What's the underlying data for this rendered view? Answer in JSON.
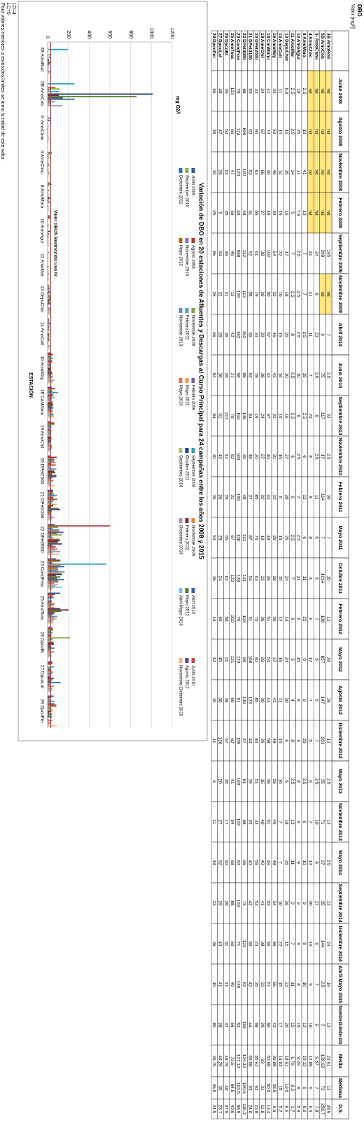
{
  "table": {
    "title": "DBO",
    "subtitle": "Valor [mg/l]",
    "header": [
      "Junio 2008",
      "Agosto 2008",
      "Noviembre 2008",
      "Febrero 2009",
      "Septiembre 2009",
      "Noviembre 2009",
      "Abril 2010",
      "Junio 2010",
      "Septiembre 2010",
      "Noviembre 2010",
      "Febrero 2011",
      "Mayo 2011",
      "Octubre 2011",
      "Febrero 2012",
      "Mayo 2012",
      "Agosto 2012",
      "Diciembre 2012",
      "Mayo 2013",
      "Noviembre 2013",
      "Mayo 2014",
      "Septiembre 2014",
      "Diciembre 2014",
      "Abril-Mayo 2015",
      "Noviembre-Diciembre 2015",
      "Media",
      "Mediana",
      "D.S."
    ],
    "rows": [
      [
        "3B AmoRod",
        "nd",
        "nd",
        "nd",
        "nd",
        195,
        "nd",
        7,
        2.5,
        33,
        2.5,
        30,
        7,
        15,
        12,
        28,
        18,
        12,
        2.5,
        13,
        2.5,
        13,
        24,
        19,
        13,
        23.61,
        13,
        38.9
      ],
      [
        "5B AmoCob",
        "nd",
        "nd",
        "nd",
        "nd",
        260,
        "nd",
        6,
        75,
        117,
        17,
        114,
        7,
        1014,
        108,
        857,
        147,
        261,
        35,
        71,
        27,
        35,
        144,
        2.5,
        7,
        139.62,
        73,
        258.7
      ],
      [
        "3- AmoCanu",
        "nd",
        "nd",
        "nd",
        "nd",
        34,
        8,
        23,
        2.5,
        6,
        2.5,
        11,
        5,
        6,
        7,
        5,
        5,
        7,
        2.5,
        10,
        6,
        17,
        9,
        7,
        9,
        9.57,
        7,
        7.8
      ],
      [
        "4 AmoChac",
        "nd",
        "nd",
        "nd",
        "nd",
        41,
        41,
        11,
        7,
        23,
        8,
        8,
        8,
        6,
        9,
        12,
        7,
        5,
        9,
        7,
        13,
        20,
        10,
        9,
        10,
        12.89,
        9,
        9.6
      ],
      [
        "8 AmoMara",
        2.5,
        19,
        41,
        13,
        7,
        7,
        2.5,
        15,
        2.5,
        6,
        12,
        6,
        11,
        22,
        9,
        9,
        20,
        2.5,
        6,
        10,
        9,
        9,
        10,
        12,
        10.13,
        9,
        8.6
      ],
      [
        "10 AmoAgui",
        19,
        25,
        17,
        7.9,
        2.5,
        2.5,
        2.5,
        10,
        8,
        2.5,
        7,
        2.5,
        21,
        6,
        15,
        8,
        9,
        8,
        6,
        9,
        9,
        9,
        8,
        15,
        9.29,
        8,
        5.9
      ],
      [
        "11 AmoMar",
        2.5,
        2.5,
        14,
        5,
        7,
        2.5,
        8,
        2.5,
        2.5,
        6,
        6,
        2.5,
        7,
        9,
        5,
        4,
        8,
        2.5,
        13,
        11,
        9,
        7,
        11,
        15,
        6.79,
        6.5,
        3.7
      ],
      [
        "13 DepuChor",
        6.8,
        16,
        15,
        19,
        17,
        18,
        26,
        10,
        19,
        27,
        28,
        25,
        24,
        14,
        24,
        20,
        6,
        6,
        18,
        26,
        26,
        15,
        23,
        20,
        18.91,
        19.5,
        6.6
      ],
      [
        "14 AmoCoit",
        11,
        15,
        14,
        16,
        32,
        10,
        15,
        16,
        15,
        16,
        6,
        16,
        15,
        12,
        16,
        12,
        15,
        16,
        7,
        7,
        10,
        22,
        15,
        17,
        14.63,
        15,
        5.2
      ],
      [
        "16 AmoMay",
        33,
        52,
        40,
        34,
        54,
        33,
        45,
        42,
        32,
        30,
        33,
        29,
        28,
        30,
        37,
        41,
        48,
        26,
        49,
        48,
        34,
        66,
        55,
        43,
        39.88,
        38.5,
        9.6
      ],
      [
        "18 CanManu",
        41,
        73,
        40,
        49,
        102,
        50,
        57,
        43,
        67,
        40,
        43,
        48,
        49,
        51,
        54,
        43,
        58,
        39,
        51,
        49,
        53,
        59,
        57,
        60,
        53.96,
        50.5,
        13.4
      ],
      [
        "19 AmoChil",
        24,
        67,
        66,
        27,
        38,
        29,
        20,
        38,
        24,
        27,
        32,
        18,
        32,
        39,
        29,
        30,
        26,
        15,
        40,
        40,
        41,
        38,
        33,
        20,
        33,
        31,
        11.8
      ],
      [
        "20 DPet2500",
        33,
        90,
        63,
        66,
        61,
        79,
        34,
        78,
        19,
        20,
        85,
        76,
        63,
        75,
        40,
        85,
        84,
        51,
        33,
        56,
        53,
        24,
        35,
        68,
        55.92,
        62,
        22.8
      ],
      [
        "21 DPet3100",
        53,
        53,
        53,
        61,
        92,
        58,
        56,
        93,
        64,
        48,
        37,
        87,
        54,
        31,
        106,
        123,
        40,
        39,
        33,
        43,
        42,
        66,
        42,
        44,
        59.08,
        53,
        24.6
      ],
      [
        "22 DPet3900",
        68,
        600,
        102,
        48,
        112,
        113,
        152,
        88,
        138,
        39,
        48,
        111,
        121,
        103,
        98,
        139,
        47,
        81,
        68,
        96,
        73,
        123,
        52,
        118,
        124.12,
        100.5,
        110.3
      ],
      [
        "23 CondFras",
        79,
        124,
        120,
        46,
        568,
        126,
        162,
        98,
        104,
        103,
        165,
        130,
        139,
        79,
        123,
        91,
        159,
        103,
        103,
        63,
        103,
        71,
        139,
        53,
        127.13,
        103.5,
        98.9
      ],
      [
        "25 AmoTosc",
        123,
        69,
        47,
        59,
        46,
        12,
        42,
        37,
        70,
        62,
        31,
        67,
        122,
        202,
        131,
        69,
        62,
        41,
        94,
        68,
        88,
        59,
        49,
        56,
        73.5,
        64.5,
        40.9
      ],
      [
        "26 DpcoBi",
        39,
        54,
        53,
        35,
        49,
        31,
        39,
        26,
        217,
        47,
        29,
        55,
        63,
        58,
        21,
        36,
        67,
        35,
        17,
        60,
        26,
        31,
        41,
        32,
        48.79,
        40,
        37.9
      ],
      [
        "27 DpcoLaf",
        48,
        47,
        26,
        5,
        64,
        32,
        26,
        38,
        51,
        43,
        26,
        28,
        24,
        60,
        45,
        30,
        126,
        20,
        27,
        62,
        29,
        43,
        41,
        28,
        40.29,
        35,
        23.7
      ],
      [
        "29 DpcoPer",
        59,
        28,
        19,
        25,
        65,
        26,
        66,
        84,
        84,
        30,
        39,
        53,
        36,
        14,
        42,
        15,
        41,
        6,
        11,
        48,
        23,
        36,
        15,
        89,
        39.75,
        36.5,
        24.9
      ]
    ]
  },
  "chart_data": {
    "type": "bar",
    "title": "Variación de DBO en 20 estaciones de Afluentes y Descargas al Curso Principal para 24 campañas entre los años 2008 y 2015",
    "ylabel": "mg O2/l",
    "xlabel": "ESTACIÓN",
    "legend": "top",
    "grid": true,
    "ylim": [
      0,
      1200
    ],
    "yticks": [
      0,
      200,
      400,
      600,
      800,
      1000,
      1200
    ],
    "reference": {
      "label": "Valor DBO5 Restricción Uso IV",
      "value": 30,
      "color": "#e02020"
    },
    "categories": [
      "3B AmoRod",
      "5B AmoCob",
      "3- AmoCanu",
      "4 AmoChac",
      "8 AmoMara",
      "10 AmoAgui",
      "11 AmoMar",
      "13 DepuChor",
      "14 AmoCoit",
      "16 AmoMay",
      "18 CanManu",
      "19 AmoChil",
      "20 DPet2500",
      "21 DPet3100",
      "22 DPet3900",
      "23 CondFras",
      "25 AmoTosc",
      "26 DpcoBi",
      "27 DpcoLaf",
      "29 DpcoPer"
    ],
    "series": [
      {
        "name": "Junio 2008",
        "color": "#2e5c9e",
        "values": [
          null,
          null,
          null,
          null,
          2.5,
          19,
          2.5,
          6.8,
          11,
          33,
          41,
          24,
          33,
          53,
          68,
          79,
          123,
          39,
          48,
          59
        ]
      },
      {
        "name": "Agosto 2008",
        "color": "#b83232",
        "values": [
          null,
          null,
          null,
          null,
          19,
          25,
          2.5,
          16,
          15,
          52,
          73,
          67,
          90,
          53,
          600,
          124,
          69,
          54,
          47,
          28
        ]
      },
      {
        "name": "Noviembre 2008",
        "color": "#7aa63a",
        "values": [
          null,
          null,
          null,
          null,
          41,
          17,
          14,
          15,
          14,
          40,
          40,
          66,
          63,
          53,
          102,
          120,
          47,
          53,
          26,
          19
        ]
      },
      {
        "name": "Febrero 2009",
        "color": "#7b5ea7",
        "values": [
          null,
          null,
          null,
          null,
          13,
          7.9,
          5,
          19,
          16,
          34,
          49,
          27,
          66,
          61,
          48,
          46,
          59,
          35,
          5,
          25
        ]
      },
      {
        "name": "Septiembre 2009",
        "color": "#2f9bbf",
        "values": [
          195,
          260,
          34,
          41,
          7,
          2.5,
          7,
          17,
          32,
          54,
          102,
          38,
          61,
          92,
          112,
          568,
          46,
          49,
          64,
          65
        ]
      },
      {
        "name": "Noviembre 2009",
        "color": "#e9862f",
        "values": [
          null,
          null,
          8,
          41,
          7,
          2.5,
          2.5,
          18,
          10,
          33,
          50,
          29,
          79,
          58,
          113,
          126,
          12,
          31,
          32,
          26
        ]
      },
      {
        "name": "Abril 2010",
        "color": "#3465a8",
        "values": [
          7,
          6,
          23,
          11,
          2.5,
          2.5,
          8,
          26,
          15,
          45,
          57,
          20,
          34,
          56,
          152,
          162,
          42,
          39,
          26,
          66
        ]
      },
      {
        "name": "Junio 2010",
        "color": "#c44a44",
        "values": [
          2.5,
          75,
          2.5,
          7,
          15,
          10,
          2.5,
          10,
          16,
          42,
          43,
          38,
          78,
          93,
          88,
          98,
          37,
          26,
          38,
          84
        ]
      },
      {
        "name": "Septiembre 2010",
        "color": "#8db14f",
        "values": [
          33,
          117,
          6,
          23,
          2.5,
          8,
          2.5,
          19,
          15,
          32,
          67,
          24,
          19,
          64,
          138,
          104,
          70,
          217,
          51,
          84
        ]
      },
      {
        "name": "Noviembre 2010",
        "color": "#8a6fb0",
        "values": [
          2.5,
          17,
          2.5,
          8,
          6,
          2.5,
          6,
          27,
          16,
          30,
          40,
          27,
          20,
          48,
          39,
          103,
          62,
          47,
          43,
          30
        ]
      },
      {
        "name": "Febrero 2011",
        "color": "#43a9c9",
        "values": [
          30,
          114,
          11,
          8,
          12,
          7,
          6,
          28,
          6,
          33,
          43,
          32,
          85,
          37,
          48,
          165,
          31,
          29,
          26,
          39
        ]
      },
      {
        "name": "Mayo 2011",
        "color": "#f29a4a",
        "values": [
          7,
          7,
          5,
          8,
          6,
          2.5,
          2.5,
          25,
          16,
          29,
          48,
          18,
          76,
          87,
          111,
          130,
          67,
          55,
          28,
          53
        ]
      },
      {
        "name": "Octubre 2011",
        "color": "#1f3f73",
        "values": [
          15,
          1014,
          6,
          6,
          11,
          21,
          7,
          24,
          15,
          28,
          49,
          32,
          63,
          54,
          121,
          139,
          122,
          63,
          24,
          36
        ]
      },
      {
        "name": "Febrero 2012",
        "color": "#8c2727",
        "values": [
          12,
          108,
          7,
          9,
          22,
          6,
          9,
          14,
          12,
          30,
          51,
          39,
          75,
          31,
          103,
          79,
          202,
          58,
          60,
          14
        ]
      },
      {
        "name": "Mayo 2012",
        "color": "#5a7d2a",
        "values": [
          28,
          857,
          5,
          12,
          9,
          15,
          5,
          24,
          16,
          37,
          54,
          29,
          40,
          106,
          98,
          123,
          131,
          21,
          45,
          42
        ]
      },
      {
        "name": "Agosto 2012",
        "color": "#5c4380",
        "values": [
          18,
          147,
          5,
          7,
          9,
          8,
          4,
          20,
          12,
          41,
          43,
          30,
          85,
          123,
          139,
          91,
          69,
          36,
          30,
          15
        ]
      },
      {
        "name": "Diciembre 2012",
        "color": "#2a7591",
        "values": [
          12,
          261,
          7,
          5,
          20,
          9,
          8,
          6,
          15,
          48,
          58,
          26,
          84,
          40,
          47,
          159,
          62,
          67,
          126,
          41
        ]
      },
      {
        "name": "Mayo 2013",
        "color": "#b5651f",
        "values": [
          2.5,
          35,
          2.5,
          9,
          2.5,
          8,
          2.5,
          6,
          16,
          26,
          39,
          15,
          51,
          39,
          81,
          103,
          41,
          35,
          20,
          6
        ]
      },
      {
        "name": "Noviembre 2013",
        "color": "#6d8fc9",
        "values": [
          13,
          71,
          10,
          7,
          6,
          6,
          13,
          18,
          7,
          49,
          51,
          40,
          33,
          33,
          68,
          103,
          94,
          17,
          27,
          11
        ]
      },
      {
        "name": "Mayo 2014",
        "color": "#d9706a",
        "values": [
          2.5,
          27,
          6,
          13,
          10,
          9,
          11,
          26,
          7,
          48,
          49,
          40,
          56,
          43,
          96,
          63,
          68,
          60,
          62,
          48
        ]
      },
      {
        "name": "Septiembre 2014",
        "color": "#a9c774",
        "values": [
          13,
          35,
          17,
          20,
          9,
          9,
          9,
          26,
          10,
          34,
          53,
          41,
          53,
          42,
          73,
          103,
          88,
          26,
          29,
          23
        ]
      },
      {
        "name": "Diciembre 2014",
        "color": "#a692c7",
        "values": [
          24,
          144,
          9,
          10,
          9,
          9,
          7,
          15,
          22,
          66,
          59,
          38,
          24,
          66,
          123,
          71,
          59,
          31,
          43,
          36
        ]
      },
      {
        "name": "Abril-Mayo 2015",
        "color": "#7cc3da",
        "values": [
          19,
          2.5,
          7,
          9,
          10,
          8,
          11,
          23,
          15,
          55,
          57,
          33,
          35,
          42,
          52,
          139,
          49,
          41,
          41,
          15
        ]
      },
      {
        "name": "Noviembre-Diciembre 2015",
        "color": "#f6b67f",
        "values": [
          13,
          7,
          9,
          10,
          12,
          15,
          15,
          20,
          17,
          43,
          60,
          20,
          68,
          44,
          118,
          53,
          56,
          32,
          28,
          89
        ]
      }
    ]
  },
  "notes": [
    "LD=4",
    "LC=5",
    "Para valores menores a estos dos límites se toma la mitad de este valor."
  ]
}
